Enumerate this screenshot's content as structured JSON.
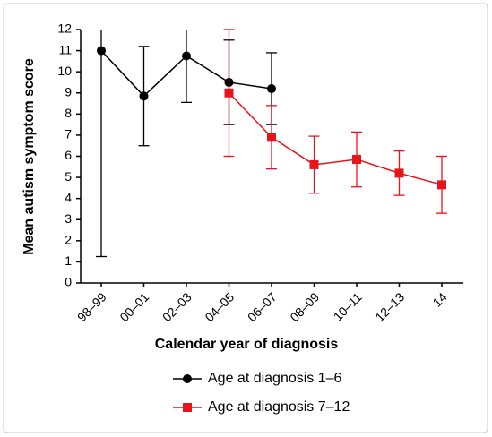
{
  "chart_data": {
    "type": "line",
    "xlabel": "Calendar year of diagnosis",
    "ylabel": "Mean autism symptom score",
    "categories": [
      "98–99",
      "00–01",
      "02–03",
      "04–05",
      "06–07",
      "08–09",
      "10–11",
      "12–13",
      "14"
    ],
    "ylim": [
      0,
      12
    ],
    "yticks": [
      0,
      1,
      2,
      3,
      4,
      5,
      6,
      7,
      8,
      9,
      10,
      11,
      12
    ],
    "series": [
      {
        "name": "Age at diagnosis 1–6",
        "color": "#000000",
        "marker": "circle",
        "values": [
          11.0,
          8.85,
          10.75,
          9.5,
          9.2,
          null,
          null,
          null,
          null
        ],
        "errors": [
          9.75,
          2.35,
          2.2,
          2.0,
          1.7,
          null,
          null,
          null,
          null
        ]
      },
      {
        "name": "Age at diagnosis 7–12",
        "color": "#e8141b",
        "marker": "square",
        "values": [
          null,
          null,
          null,
          9.0,
          6.9,
          5.6,
          5.85,
          5.2,
          4.65
        ],
        "errors": [
          null,
          null,
          null,
          3.0,
          1.5,
          1.35,
          1.3,
          1.05,
          1.35
        ]
      }
    ]
  }
}
